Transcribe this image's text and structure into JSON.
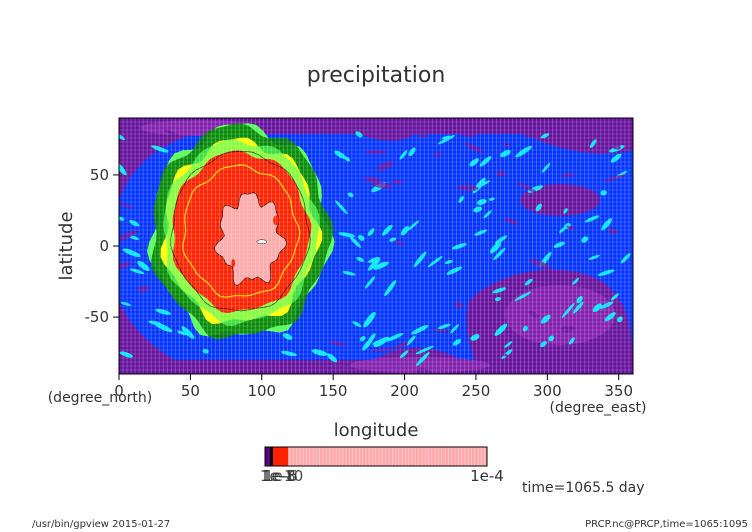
{
  "chart_data": {
    "type": "heatmap",
    "title": "precipitation",
    "xlabel": "longitude",
    "xunit": "(degree_east)",
    "ylabel": "latitude",
    "yunit": "(degree_north)",
    "xlim": [
      0,
      360
    ],
    "ylim": [
      -90,
      90
    ],
    "x_ticks": [
      0,
      50,
      100,
      150,
      200,
      250,
      300,
      350
    ],
    "y_ticks": [
      -50,
      0,
      50
    ],
    "features": [
      {
        "kind": "rain-band",
        "center_lon": 85,
        "center_lat": 10,
        "lon_radius": 62,
        "lat_radius": 74,
        "color": "#008000"
      },
      {
        "kind": "rain-band",
        "center_lon": 85,
        "center_lat": 10,
        "lon_radius": 54,
        "lat_radius": 64,
        "color": "#ffff00"
      },
      {
        "kind": "rain-band",
        "center_lon": 85,
        "center_lat": 10,
        "lon_radius": 48,
        "lat_radius": 56,
        "color": "#ff2200"
      },
      {
        "kind": "rain-core",
        "center_lon": 92,
        "center_lat": 5,
        "lon_radius": 22,
        "lat_radius": 30,
        "color": "#ffaaaa"
      }
    ],
    "colorbar": {
      "colors": [
        "#5a0080",
        "#000000",
        "#ff2200",
        "#ffaaaa"
      ],
      "labels": [
        "1e-10",
        "1e-8",
        "1e-6",
        "1e-4"
      ],
      "max_label": "1e-4"
    },
    "annotation": "time=1065.5 day",
    "footer_left": "/usr/bin/gpview  2015-01-27",
    "footer_right": "PRCP.nc@PRCP,time=1065:1095"
  },
  "colors": {
    "ocean_blue": "#0033ff",
    "deep_purple": "#66119e",
    "mid_purple": "#8822b0",
    "cyan": "#00e5ff",
    "green": "#008000",
    "light_green": "#55ff55",
    "yellow": "#ffff00",
    "red": "#ff2200",
    "pink": "#ffaaaa",
    "grid": "#ffffff"
  }
}
